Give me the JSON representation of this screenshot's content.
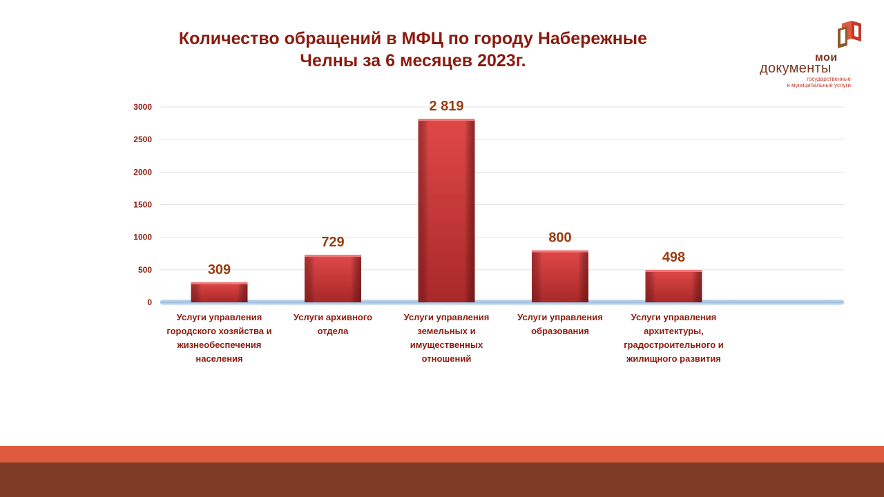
{
  "title": {
    "line1": "Количество обращений в МФЦ по городу Набережные",
    "line2": "Челны за 6 месяцев  2023г."
  },
  "logo": {
    "word1": "мои",
    "word2": "документы",
    "sub1": "государственные",
    "sub2": "и муниципальные услуги",
    "icon": "moi-dokumenty-logo-mark"
  },
  "colors": {
    "title": "#8B1A0E",
    "bar": "#D94040",
    "bar_dark": "#A82828",
    "data_label": "#9A3C10",
    "axis_labels": "#8B1A0E",
    "band_top": "#E05A3F",
    "band_bottom": "#7F3B26"
  },
  "chart_data": {
    "type": "bar",
    "title": "Количество обращений в МФЦ по городу Набережные Челны за 6 месяцев  2023г.",
    "categories": [
      "Услуги управления городского хозяйства и жизнеобеспечения населения",
      "Услуги архивного отдела",
      "Услуги управления земельных и имущественных отношений",
      "Услуги управления образования",
      "Услуги управления архитектуры, градостроительного и жилищного развития"
    ],
    "category_lines": [
      [
        "Услуги управления",
        "городского хозяйства и",
        "жизнеобеспечения",
        "населения"
      ],
      [
        "Услуги архивного",
        "отдела"
      ],
      [
        "Услуги управления",
        "земельных и",
        "имущественных",
        "отношений"
      ],
      [
        "Услуги управления",
        "образования"
      ],
      [
        "Услуги управления",
        "архитектуры,",
        "градостроительного и",
        "жилищного развития"
      ]
    ],
    "values": [
      309,
      729,
      2819,
      800,
      498
    ],
    "value_labels": [
      "309",
      "729",
      "2 819",
      "800",
      "498"
    ],
    "yticks": [
      "0",
      "500",
      "1000",
      "1500",
      "2000",
      "2500",
      "3000"
    ],
    "ylim": [
      0,
      3000
    ],
    "xlabel": "",
    "ylabel": "",
    "grid": true,
    "legend": false
  }
}
